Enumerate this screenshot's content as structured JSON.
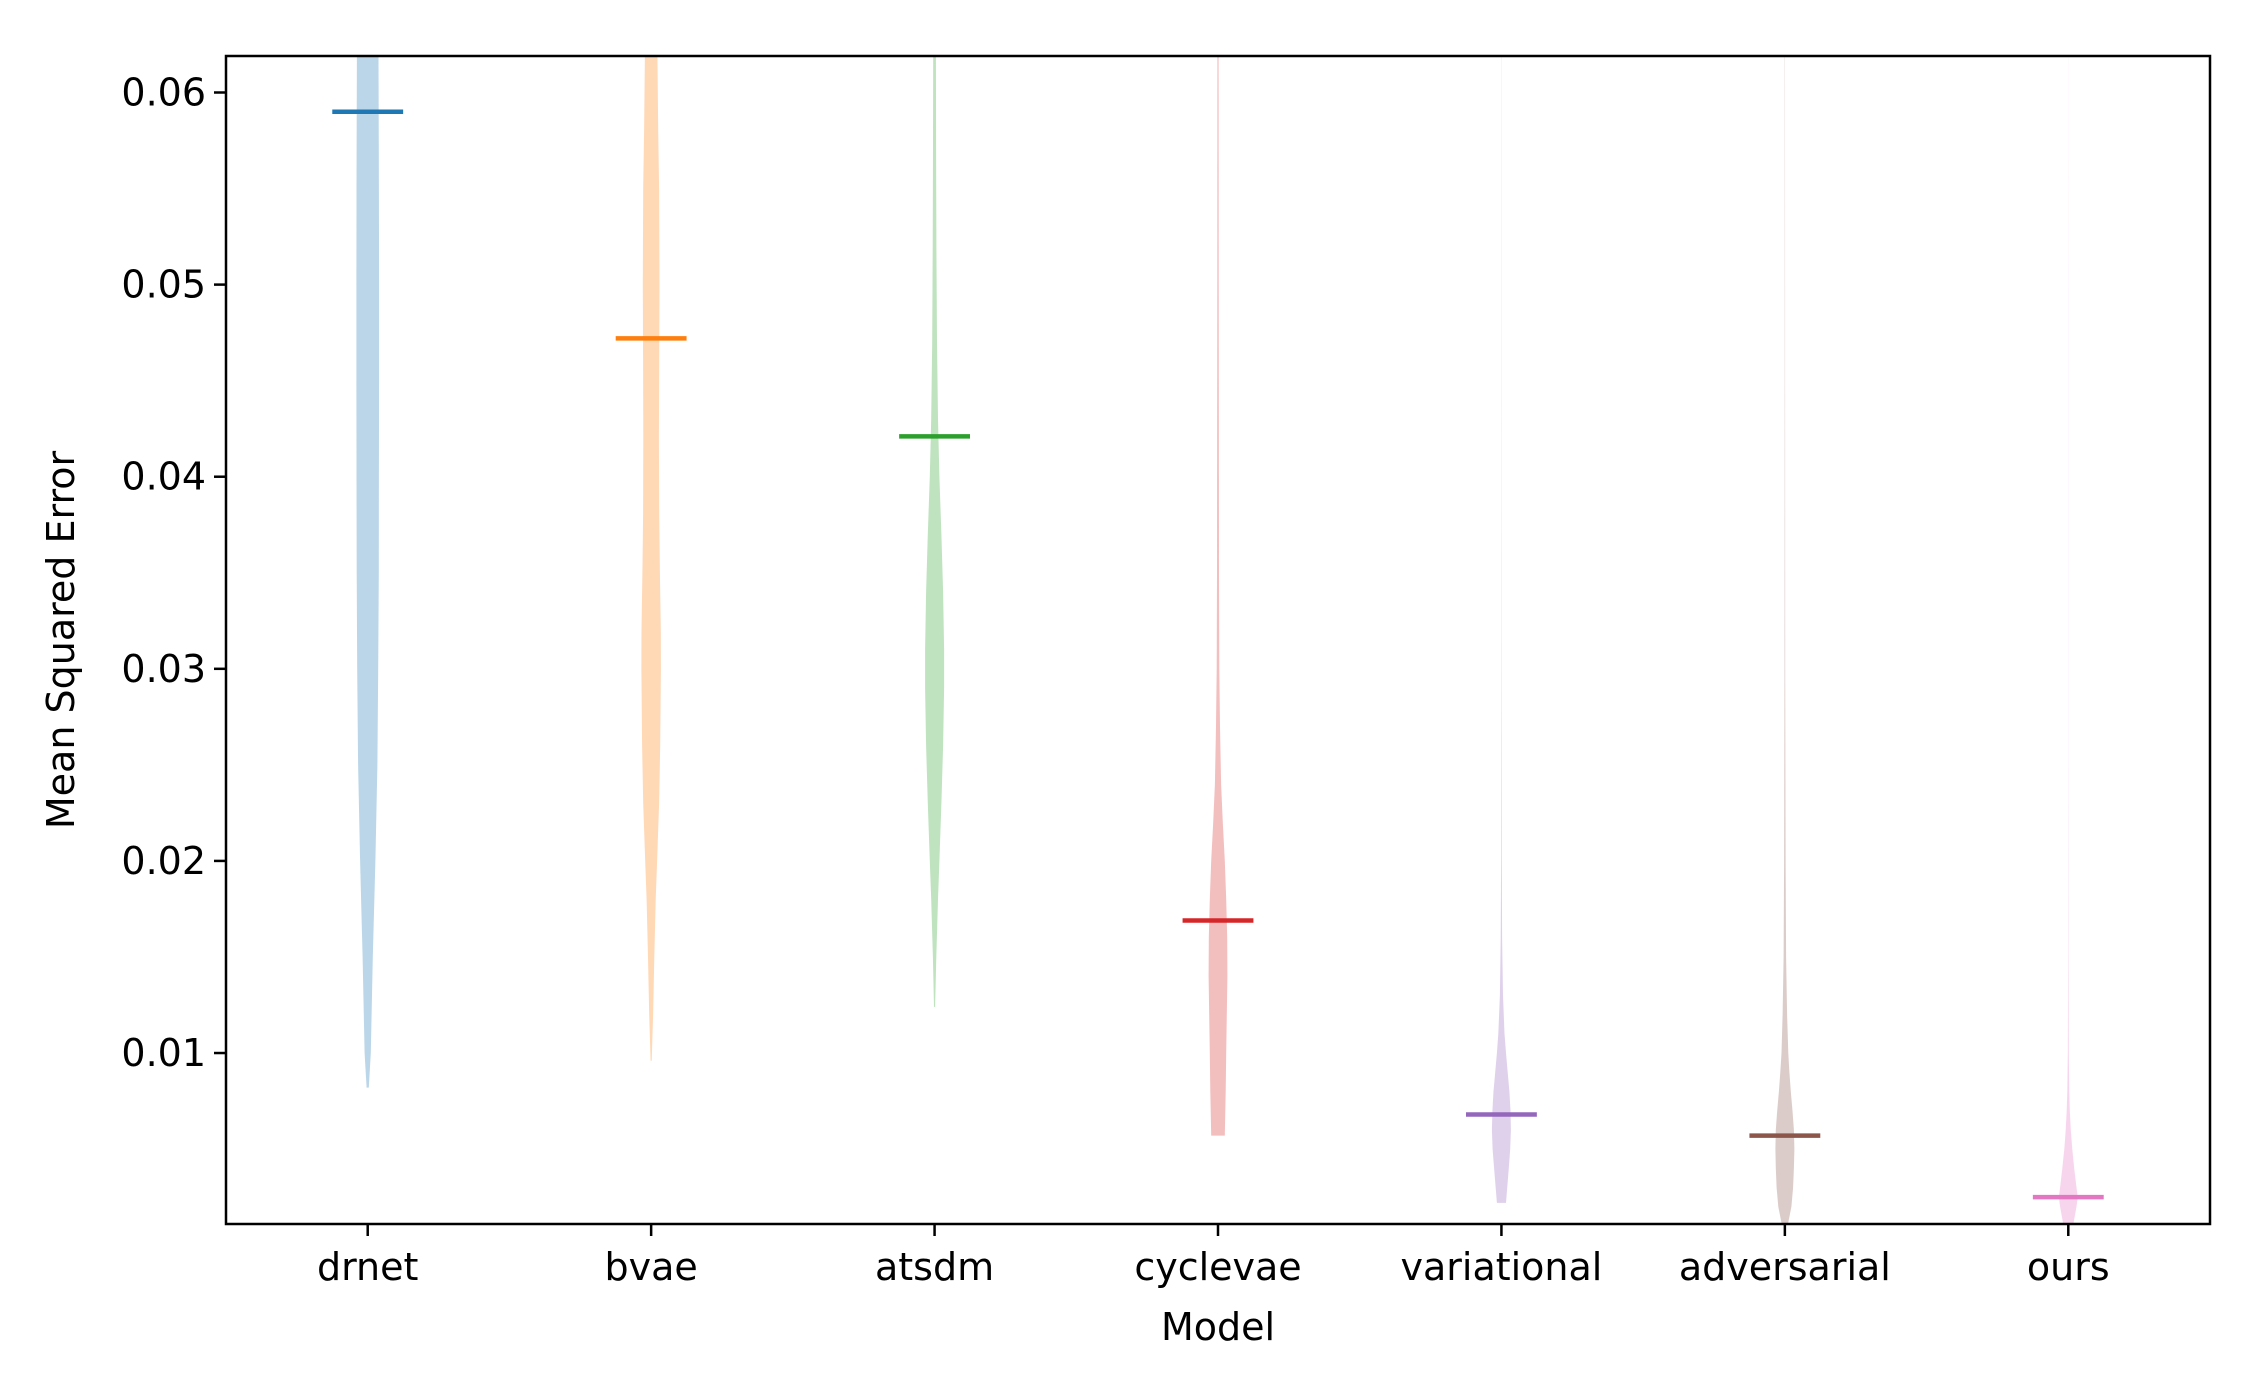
{
  "chart_data": {
    "type": "violin",
    "title": "",
    "xlabel": "Model",
    "ylabel": "Mean Squared Error",
    "ylim": [
      0.0011,
      0.0619
    ],
    "yticks": [
      0.01,
      0.02,
      0.03,
      0.04,
      0.05,
      0.06
    ],
    "ytick_labels": [
      "0.01",
      "0.02",
      "0.03",
      "0.04",
      "0.05",
      "0.06"
    ],
    "grid": false,
    "legend": "none",
    "categories": [
      "drnet",
      "bvae",
      "atsdm",
      "cyclevae",
      "variational",
      "adversarial",
      "ours"
    ],
    "series": [
      {
        "category": "drnet",
        "color": "#1f77b4",
        "median": 0.059,
        "profile": [
          [
            0.0082,
            0.004
          ],
          [
            0.01,
            0.011
          ],
          [
            0.015,
            0.018
          ],
          [
            0.02,
            0.027
          ],
          [
            0.025,
            0.034
          ],
          [
            0.03,
            0.037
          ],
          [
            0.035,
            0.039
          ],
          [
            0.04,
            0.0395
          ],
          [
            0.045,
            0.04
          ],
          [
            0.05,
            0.04
          ],
          [
            0.055,
            0.0395
          ],
          [
            0.062,
            0.038
          ]
        ]
      },
      {
        "category": "bvae",
        "color": "#ff7f0e",
        "median": 0.0472,
        "profile": [
          [
            0.0096,
            0.002
          ],
          [
            0.012,
            0.007
          ],
          [
            0.015,
            0.011
          ],
          [
            0.018,
            0.016
          ],
          [
            0.02,
            0.021
          ],
          [
            0.023,
            0.028
          ],
          [
            0.026,
            0.032
          ],
          [
            0.03,
            0.0345
          ],
          [
            0.032,
            0.034
          ],
          [
            0.035,
            0.031
          ],
          [
            0.038,
            0.0285
          ],
          [
            0.042,
            0.0275
          ],
          [
            0.046,
            0.0285
          ],
          [
            0.05,
            0.0295
          ],
          [
            0.055,
            0.028
          ],
          [
            0.058,
            0.025
          ],
          [
            0.062,
            0.022
          ]
        ]
      },
      {
        "category": "atsdm",
        "color": "#2ca02c",
        "median": 0.0421,
        "profile": [
          [
            0.0124,
            0.002
          ],
          [
            0.015,
            0.006
          ],
          [
            0.018,
            0.012
          ],
          [
            0.02,
            0.017
          ],
          [
            0.023,
            0.024
          ],
          [
            0.026,
            0.03
          ],
          [
            0.029,
            0.0335
          ],
          [
            0.031,
            0.0335
          ],
          [
            0.034,
            0.03
          ],
          [
            0.037,
            0.024
          ],
          [
            0.04,
            0.017
          ],
          [
            0.043,
            0.012
          ],
          [
            0.047,
            0.0085
          ],
          [
            0.052,
            0.0065
          ],
          [
            0.057,
            0.0055
          ],
          [
            0.062,
            0.0048
          ]
        ]
      },
      {
        "category": "cyclevae",
        "color": "#d62728",
        "median": 0.0169,
        "profile": [
          [
            0.0057,
            0.024
          ],
          [
            0.008,
            0.027
          ],
          [
            0.01,
            0.029
          ],
          [
            0.012,
            0.031
          ],
          [
            0.014,
            0.033
          ],
          [
            0.016,
            0.0325
          ],
          [
            0.018,
            0.029
          ],
          [
            0.02,
            0.024
          ],
          [
            0.022,
            0.017
          ],
          [
            0.024,
            0.011
          ],
          [
            0.027,
            0.007
          ],
          [
            0.03,
            0.0045
          ],
          [
            0.035,
            0.0035
          ],
          [
            0.04,
            0.003
          ],
          [
            0.05,
            0.0025
          ],
          [
            0.062,
            0.002
          ]
        ]
      },
      {
        "category": "variational",
        "color": "#9467bd",
        "median": 0.0068,
        "profile": [
          [
            0.0022,
            0.016
          ],
          [
            0.004,
            0.026
          ],
          [
            0.005,
            0.031
          ],
          [
            0.006,
            0.0335
          ],
          [
            0.007,
            0.032
          ],
          [
            0.008,
            0.028
          ],
          [
            0.009,
            0.022
          ],
          [
            0.01,
            0.016
          ],
          [
            0.011,
            0.011
          ],
          [
            0.013,
            0.0055
          ],
          [
            0.016,
            0.0025
          ],
          [
            0.02,
            0.0012
          ],
          [
            0.03,
            0.0006
          ],
          [
            0.045,
            0.0004
          ],
          [
            0.062,
            0.0003
          ]
        ]
      },
      {
        "category": "adversarial",
        "color": "#8c564b",
        "median": 0.0057,
        "profile": [
          [
            0.0011,
            0.011
          ],
          [
            0.002,
            0.023
          ],
          [
            0.003,
            0.029
          ],
          [
            0.004,
            0.032
          ],
          [
            0.005,
            0.0335
          ],
          [
            0.006,
            0.032
          ],
          [
            0.007,
            0.027
          ],
          [
            0.008,
            0.021
          ],
          [
            0.009,
            0.016
          ],
          [
            0.01,
            0.012
          ],
          [
            0.012,
            0.008
          ],
          [
            0.015,
            0.0045
          ],
          [
            0.02,
            0.0025
          ],
          [
            0.03,
            0.0012
          ],
          [
            0.045,
            0.0007
          ],
          [
            0.062,
            0.0005
          ]
        ]
      },
      {
        "category": "ours",
        "color": "#e377c2",
        "median": 0.0025,
        "profile": [
          [
            0.0011,
            0.018
          ],
          [
            0.002,
            0.029
          ],
          [
            0.0025,
            0.0335
          ],
          [
            0.003,
            0.029
          ],
          [
            0.004,
            0.021
          ],
          [
            0.005,
            0.014
          ],
          [
            0.006,
            0.009
          ],
          [
            0.007,
            0.0055
          ],
          [
            0.008,
            0.0035
          ],
          [
            0.01,
            0.0018
          ],
          [
            0.015,
            0.0008
          ],
          [
            0.025,
            0.0004
          ],
          [
            0.04,
            0.0003
          ],
          [
            0.062,
            0.0002
          ]
        ]
      }
    ]
  }
}
